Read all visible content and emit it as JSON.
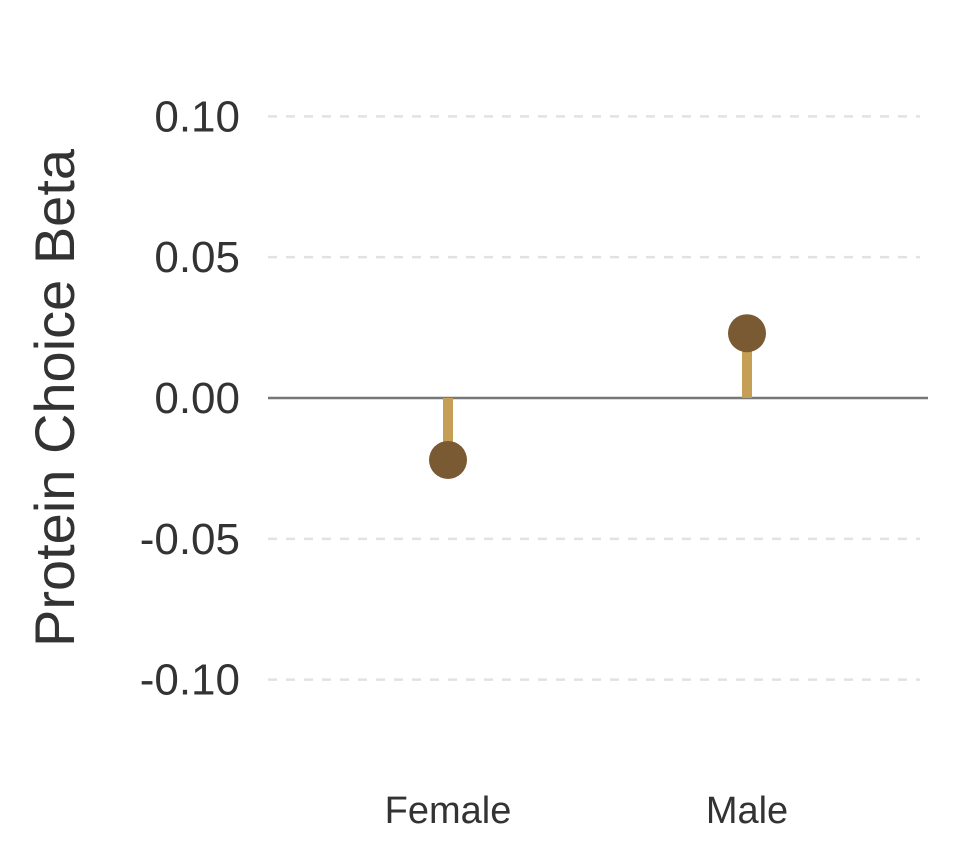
{
  "chart_data": {
    "type": "lollipop",
    "categories": [
      "Female",
      "Male"
    ],
    "values": [
      -0.022,
      0.023
    ],
    "title": "",
    "xlabel": "",
    "ylabel": "Protein Choice Beta",
    "ylim": [
      -0.12,
      0.12
    ],
    "yticks": [
      0.1,
      0.05,
      0.0,
      -0.05,
      -0.1
    ],
    "ytick_labels": [
      "0.10",
      "0.05",
      "0.00",
      "-0.05",
      "-0.10"
    ],
    "grid": "horizontal-dashed",
    "zero_line": true,
    "colors": {
      "stem": "#c49f55",
      "point": "#7a5a32",
      "grid": "#e2e2e2",
      "zero_line": "#777777",
      "text": "#333333"
    }
  }
}
